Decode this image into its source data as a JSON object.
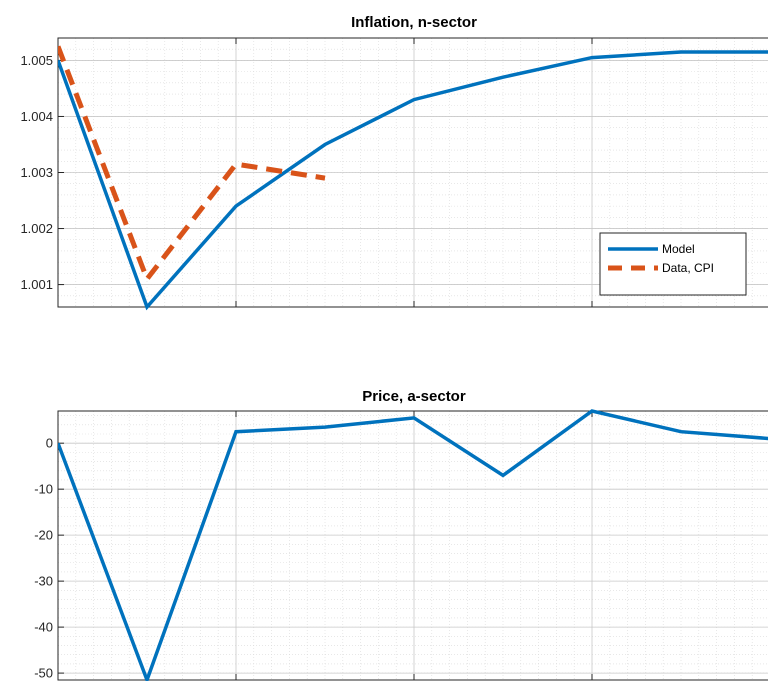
{
  "chart_data": [
    {
      "type": "line",
      "title": "Inflation, n-sector",
      "xlabel": "",
      "ylabel": "",
      "x_ticks": [
        1,
        3,
        5,
        7,
        9
      ],
      "xlim": [
        1,
        9
      ],
      "ylim": [
        1.0006,
        1.0054
      ],
      "y_ticks": [
        1.001,
        1.002,
        1.003,
        1.004,
        1.005
      ],
      "y_tick_labels": [
        "1.001",
        "1.002",
        "1.003",
        "1.004",
        "1.005"
      ],
      "grid": true,
      "minor_grid": true,
      "legend_position": "bottom-right",
      "series": [
        {
          "name": "Model",
          "color": "#0072BD",
          "style": "solid",
          "x": [
            1,
            2,
            3,
            4,
            5,
            6,
            7,
            8,
            9
          ],
          "values": [
            1.005,
            1.0006,
            1.0024,
            1.0035,
            1.0043,
            1.0047,
            1.00505,
            1.00515,
            1.00515
          ]
        },
        {
          "name": "Data, CPI",
          "color": "#D95319",
          "style": "dashed",
          "x": [
            1,
            2,
            3,
            4
          ],
          "values": [
            1.00525,
            1.0011,
            1.00315,
            1.0029
          ]
        }
      ]
    },
    {
      "type": "line",
      "title": "Price, a-sector",
      "xlabel": "",
      "ylabel": "",
      "x_ticks": [
        1,
        3,
        5,
        7,
        9
      ],
      "xlim": [
        1,
        9
      ],
      "ylim": [
        -51.5,
        7
      ],
      "y_ticks": [
        0,
        -10,
        -20,
        -30,
        -40,
        -50
      ],
      "y_tick_labels": [
        "0",
        "-10",
        "-20",
        "-30",
        "-40",
        "-50"
      ],
      "grid": true,
      "minor_grid": true,
      "series": [
        {
          "color": "#0072BD",
          "style": "solid",
          "x": [
            1,
            2,
            3,
            4,
            5,
            6,
            7,
            8,
            9
          ],
          "values": [
            0,
            -51.5,
            2.5,
            3.5,
            5.5,
            -7,
            7,
            2.5,
            1
          ]
        }
      ]
    }
  ]
}
